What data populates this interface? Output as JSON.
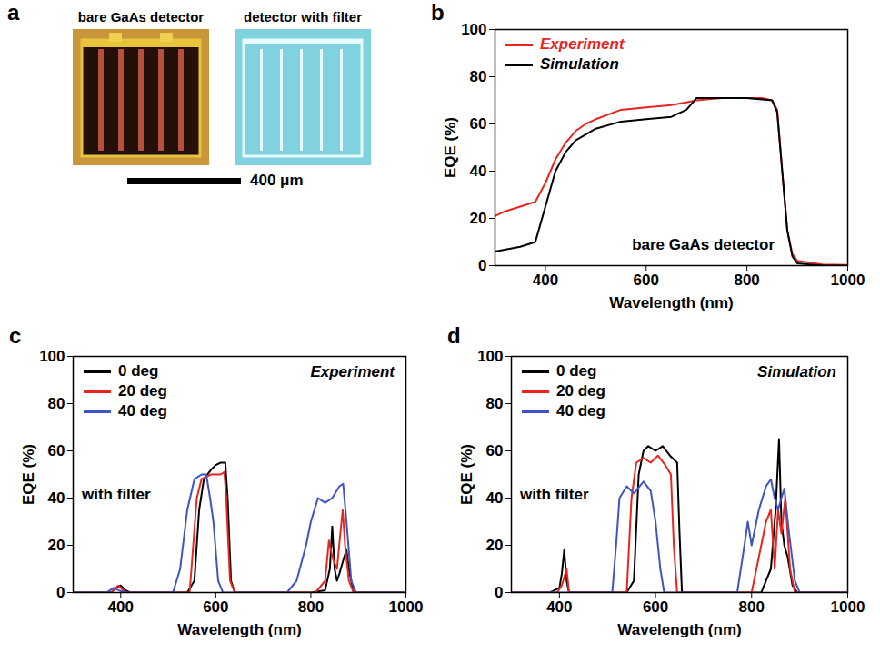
{
  "panel_a": {
    "panel_label": "a",
    "images": [
      "bare GaAs detector",
      "detector with filter"
    ],
    "scale_bar": "400 μm"
  },
  "chart_data": [
    {
      "type": "line",
      "panel_label": "b",
      "x_label": "Wavelength (nm)",
      "y_label": "EQE (%)",
      "annotations": [
        "bare GaAs detector"
      ],
      "legend": "upper left",
      "xlim": [
        300,
        1000
      ],
      "xticks": [
        400,
        600,
        800,
        1000
      ],
      "ylim": [
        0,
        100
      ],
      "yticks": [
        0,
        20,
        40,
        60,
        80,
        100
      ],
      "series": [
        {
          "name": "Experiment",
          "color": "#e8261f",
          "x": [
            300,
            320,
            350,
            380,
            400,
            420,
            440,
            460,
            480,
            500,
            550,
            600,
            650,
            700,
            750,
            800,
            830,
            850,
            860,
            870,
            880,
            890,
            900,
            950,
            1000
          ],
          "values": [
            21,
            23,
            25,
            27,
            35,
            45,
            52,
            57,
            60,
            62,
            66,
            67,
            68,
            70,
            71,
            71,
            71,
            70,
            66,
            40,
            15,
            5,
            2,
            0.5,
            0.3
          ]
        },
        {
          "name": "Simulation",
          "color": "#000000",
          "x": [
            300,
            350,
            380,
            400,
            420,
            440,
            460,
            500,
            550,
            600,
            650,
            680,
            700,
            750,
            800,
            850,
            860,
            870,
            880,
            890,
            900,
            950,
            1000
          ],
          "values": [
            6,
            8,
            10,
            25,
            40,
            48,
            53,
            58,
            61,
            62,
            63,
            66,
            71,
            71,
            71,
            70,
            65,
            40,
            15,
            4,
            1,
            0,
            0
          ]
        }
      ]
    },
    {
      "type": "line",
      "panel_label": "c",
      "x_label": "Wavelength (nm)",
      "y_label": "EQE (%)",
      "annotations": [
        "Experiment",
        "with filter"
      ],
      "legend": "upper left",
      "xlim": [
        300,
        1000
      ],
      "xticks": [
        400,
        600,
        800,
        1000
      ],
      "ylim": [
        0,
        100
      ],
      "yticks": [
        0,
        20,
        40,
        60,
        80,
        100
      ],
      "series": [
        {
          "name": "0 deg",
          "color": "#000000",
          "x": [
            300,
            380,
            390,
            400,
            410,
            420,
            540,
            555,
            565,
            575,
            590,
            600,
            610,
            620,
            625,
            632,
            640,
            800,
            830,
            840,
            845,
            850,
            855,
            860,
            870,
            875,
            880,
            890,
            1000
          ],
          "values": [
            0,
            0,
            2,
            3,
            1,
            0,
            0,
            5,
            35,
            48,
            52,
            54,
            55,
            55,
            40,
            5,
            0,
            0,
            1,
            10,
            28,
            10,
            5,
            8,
            15,
            18,
            10,
            0,
            0
          ]
        },
        {
          "name": "20 deg",
          "color": "#e8261f",
          "x": [
            300,
            380,
            395,
            410,
            545,
            560,
            570,
            590,
            610,
            618,
            622,
            630,
            640,
            810,
            830,
            838,
            845,
            855,
            862,
            867,
            872,
            880,
            890,
            1000
          ],
          "values": [
            0,
            0,
            3,
            0,
            0,
            40,
            48,
            50,
            50,
            51,
            40,
            5,
            0,
            0,
            5,
            22,
            15,
            10,
            25,
            35,
            20,
            5,
            0,
            0
          ]
        },
        {
          "name": "40 deg",
          "color": "#3d55c4",
          "x": [
            300,
            370,
            385,
            395,
            410,
            510,
            525,
            540,
            555,
            570,
            580,
            588,
            595,
            605,
            615,
            750,
            770,
            790,
            800,
            815,
            830,
            845,
            860,
            868,
            875,
            885,
            895,
            1000
          ],
          "values": [
            0,
            0,
            2,
            1,
            0,
            0,
            10,
            35,
            48,
            50,
            50,
            40,
            30,
            5,
            0,
            0,
            5,
            20,
            30,
            40,
            38,
            40,
            45,
            46,
            30,
            5,
            0,
            0
          ]
        }
      ]
    },
    {
      "type": "line",
      "panel_label": "d",
      "x_label": "Wavelength (nm)",
      "y_label": "EQE (%)",
      "annotations": [
        "Simulation",
        "with filter"
      ],
      "legend": "upper left",
      "xlim": [
        300,
        1000
      ],
      "xticks": [
        400,
        600,
        800,
        1000
      ],
      "ylim": [
        0,
        100
      ],
      "yticks": [
        0,
        20,
        40,
        60,
        80,
        100
      ],
      "series": [
        {
          "name": "0 deg",
          "color": "#000000",
          "x": [
            300,
            380,
            400,
            405,
            410,
            415,
            420,
            540,
            555,
            565,
            575,
            585,
            600,
            615,
            630,
            645,
            650,
            655,
            820,
            840,
            850,
            857,
            862,
            868,
            875,
            885,
            895,
            1000
          ],
          "values": [
            0,
            0,
            2,
            8,
            18,
            5,
            0,
            0,
            5,
            50,
            60,
            62,
            60,
            62,
            58,
            55,
            25,
            0,
            0,
            10,
            35,
            65,
            30,
            20,
            15,
            3,
            0,
            0
          ]
        },
        {
          "name": "20 deg",
          "color": "#e8261f",
          "x": [
            300,
            395,
            405,
            415,
            420,
            540,
            550,
            560,
            575,
            590,
            605,
            620,
            632,
            638,
            645,
            800,
            815,
            830,
            840,
            848,
            855,
            862,
            870,
            880,
            890,
            1000
          ],
          "values": [
            0,
            0,
            3,
            10,
            0,
            0,
            40,
            55,
            57,
            55,
            58,
            54,
            50,
            20,
            0,
            0,
            15,
            30,
            35,
            10,
            35,
            25,
            40,
            10,
            0,
            0
          ]
        },
        {
          "name": "40 deg",
          "color": "#3d55c4",
          "x": [
            300,
            510,
            518,
            525,
            540,
            555,
            575,
            590,
            600,
            610,
            618,
            770,
            785,
            792,
            800,
            815,
            830,
            840,
            848,
            855,
            862,
            868,
            878,
            890,
            900,
            1000
          ],
          "values": [
            0,
            0,
            20,
            40,
            45,
            42,
            47,
            43,
            30,
            10,
            0,
            0,
            20,
            30,
            20,
            35,
            45,
            48,
            40,
            35,
            40,
            44,
            25,
            5,
            0,
            0
          ]
        }
      ]
    }
  ]
}
